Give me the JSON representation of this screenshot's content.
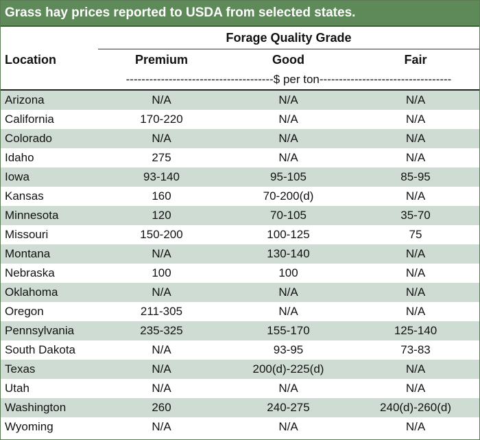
{
  "title": "Grass hay prices reported to USDA from selected states.",
  "header": {
    "location": "Location",
    "group": "Forage Quality Grade",
    "premium": "Premium",
    "good": "Good",
    "fair": "Fair",
    "unit": "--------------------------------------$ per ton----------------------------------"
  },
  "rows": [
    {
      "location": "Arizona",
      "premium": "N/A",
      "good": "N/A",
      "fair": "N/A"
    },
    {
      "location": "California",
      "premium": "170-220",
      "good": "N/A",
      "fair": "N/A"
    },
    {
      "location": "Colorado",
      "premium": "N/A",
      "good": "N/A",
      "fair": "N/A"
    },
    {
      "location": "Idaho",
      "premium": "275",
      "good": "N/A",
      "fair": "N/A"
    },
    {
      "location": "Iowa",
      "premium": "93-140",
      "good": "95-105",
      "fair": "85-95"
    },
    {
      "location": "Kansas",
      "premium": "160",
      "good": "70-200(d)",
      "fair": "N/A"
    },
    {
      "location": "Minnesota",
      "premium": "120",
      "good": "70-105",
      "fair": "35-70"
    },
    {
      "location": "Missouri",
      "premium": "150-200",
      "good": "100-125",
      "fair": "75"
    },
    {
      "location": "Montana",
      "premium": "N/A",
      "good": "130-140",
      "fair": "N/A"
    },
    {
      "location": "Nebraska",
      "premium": "100",
      "good": "100",
      "fair": "N/A"
    },
    {
      "location": "Oklahoma",
      "premium": "N/A",
      "good": "N/A",
      "fair": "N/A"
    },
    {
      "location": "Oregon",
      "premium": "211-305",
      "good": "N/A",
      "fair": "N/A"
    },
    {
      "location": "Pennsylvania",
      "premium": "235-325",
      "good": "155-170",
      "fair": "125-140"
    },
    {
      "location": "South Dakota",
      "premium": "N/A",
      "good": "93-95",
      "fair": "73-83"
    },
    {
      "location": "Texas",
      "premium": "N/A",
      "good": "200(d)-225(d)",
      "fair": "N/A"
    },
    {
      "location": "Utah",
      "premium": "N/A",
      "good": "N/A",
      "fair": "N/A"
    },
    {
      "location": "Washington",
      "premium": "260",
      "good": "240-275",
      "fair": "240(d)-260(d)"
    },
    {
      "location": "Wyoming",
      "premium": "N/A",
      "good": "N/A",
      "fair": "N/A"
    }
  ]
}
